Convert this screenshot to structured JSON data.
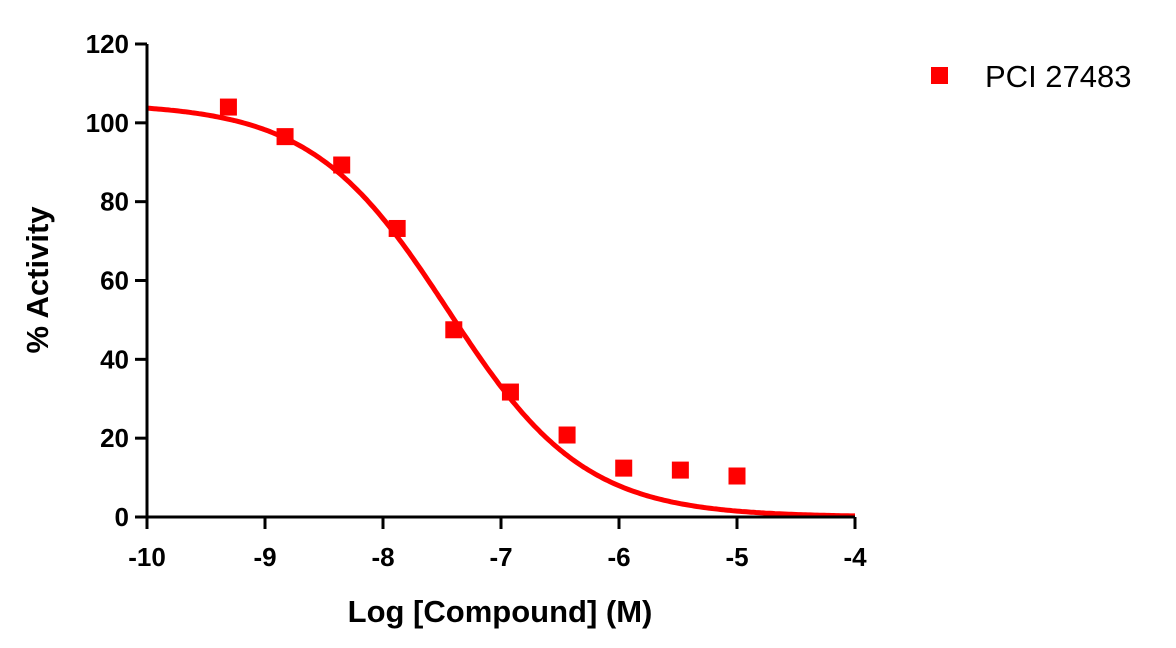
{
  "chart_data": {
    "type": "scatter",
    "title": "",
    "xlabel": "Log [Compound] (M)",
    "ylabel": "% Activity",
    "xlim": [
      -10,
      -4
    ],
    "ylim": [
      0,
      120
    ],
    "xticks": [
      -10,
      -9,
      -8,
      -7,
      -6,
      -5,
      -4
    ],
    "yticks": [
      0,
      20,
      40,
      60,
      80,
      100,
      120
    ],
    "xtick_labels": [
      "-10",
      "-9",
      "-8",
      "-7",
      "-6",
      "-5",
      "-4"
    ],
    "ytick_labels": [
      "0",
      "20",
      "40",
      "60",
      "80",
      "100",
      "120"
    ],
    "grid": false,
    "legend_position": "top-right",
    "series": [
      {
        "name": "PCI 27483",
        "color": "#ff0000",
        "marker": "square",
        "x": [
          -9.31,
          -8.83,
          -8.35,
          -7.88,
          -7.4,
          -6.92,
          -6.44,
          -5.96,
          -5.48,
          -5.0
        ],
        "y": [
          104,
          96.5,
          89.3,
          73.2,
          47.5,
          31.7,
          20.8,
          12.4,
          11.9,
          10.4
        ],
        "fit": {
          "model": "sigmoidal dose-response",
          "top": 105,
          "bottom": 0,
          "logIC50": -7.45,
          "hill_slope": -0.75
        }
      }
    ]
  }
}
